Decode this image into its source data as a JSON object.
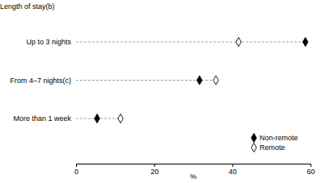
{
  "chart_data": {
    "type": "dot",
    "y_label": "Length of stay(b)",
    "x_label": "%",
    "categories": [
      "Up to 3 nights",
      "From 4–7 nights(c)",
      "More than 1 week"
    ],
    "series": [
      {
        "name": "Non-remote",
        "color": "#000000",
        "marker": "diamond",
        "values": [
          58.7,
          31.6,
          5.4
        ]
      },
      {
        "name": "Remote",
        "color": "#000000",
        "marker": "diamond-open",
        "values": [
          41.6,
          35.8,
          11.4
        ]
      }
    ],
    "xlim": [
      0,
      60
    ],
    "xticks": [
      0,
      20,
      40,
      60
    ],
    "orientation": "horizontal",
    "legend": "lower right"
  }
}
